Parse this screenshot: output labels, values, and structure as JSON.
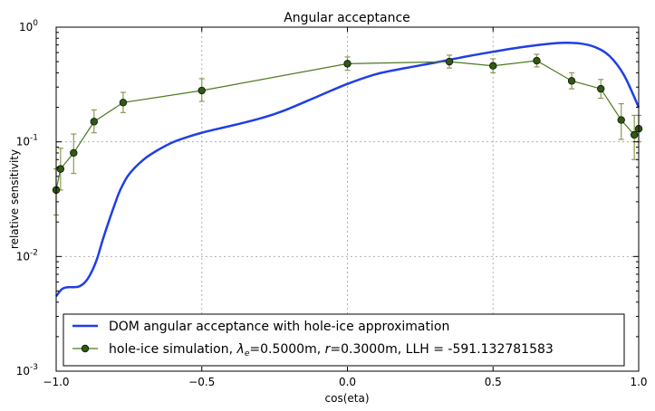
{
  "chart_data": {
    "type": "line",
    "title": "Angular acceptance",
    "xlabel": "cos(eta)",
    "ylabel": "relative sensitivity",
    "xlim": [
      -1.0,
      1.0
    ],
    "ylim": [
      0.001,
      1.0
    ],
    "yscale": "log",
    "grid": true,
    "legend_position": "lower-left",
    "x_ticks": [
      "−1.0",
      "−0.5",
      "0.0",
      "0.5",
      "1.0"
    ],
    "x_tick_values": [
      -1.0,
      -0.5,
      0.0,
      0.5,
      1.0
    ],
    "y_ticks": [
      {
        "base": "10",
        "exp": "0",
        "value": 1.0
      },
      {
        "base": "10",
        "exp": "-1",
        "value": 0.1
      },
      {
        "base": "10",
        "exp": "-2",
        "value": 0.01
      },
      {
        "base": "10",
        "exp": "-3",
        "value": 0.001
      }
    ],
    "series": [
      {
        "name": "DOM angular acceptance with hole-ice approximation",
        "color": "#1f3fe6",
        "style": "line",
        "x": [
          -1.0,
          -0.98,
          -0.96,
          -0.94,
          -0.92,
          -0.9,
          -0.88,
          -0.86,
          -0.84,
          -0.82,
          -0.8,
          -0.78,
          -0.75,
          -0.7,
          -0.65,
          -0.6,
          -0.55,
          -0.5,
          -0.45,
          -0.4,
          -0.35,
          -0.3,
          -0.25,
          -0.2,
          -0.1,
          0.0,
          0.1,
          0.2,
          0.3,
          0.4,
          0.5,
          0.6,
          0.7,
          0.75,
          0.8,
          0.85,
          0.9,
          0.95,
          1.0
        ],
        "y": [
          0.0045,
          0.0052,
          0.0054,
          0.0054,
          0.0055,
          0.006,
          0.0072,
          0.0095,
          0.014,
          0.02,
          0.028,
          0.038,
          0.052,
          0.07,
          0.085,
          0.099,
          0.11,
          0.12,
          0.129,
          0.138,
          0.148,
          0.16,
          0.175,
          0.195,
          0.25,
          0.32,
          0.39,
          0.44,
          0.49,
          0.55,
          0.61,
          0.67,
          0.72,
          0.73,
          0.72,
          0.67,
          0.56,
          0.38,
          0.2
        ]
      },
      {
        "name": "hole-ice simulation, λ_e=0.5000m, r=0.3000m, LLH = -591.132781583",
        "color": "#4b7a1c",
        "marker_color": "#2f5a10",
        "style": "line-marker-errorbar",
        "x": [
          -1.0,
          -0.985,
          -0.94,
          -0.87,
          -0.77,
          -0.5,
          0.0,
          0.35,
          0.5,
          0.65,
          0.77,
          0.87,
          0.94,
          0.985,
          1.0
        ],
        "y": [
          0.038,
          0.058,
          0.08,
          0.15,
          0.22,
          0.28,
          0.48,
          0.5,
          0.46,
          0.51,
          0.34,
          0.29,
          0.155,
          0.115,
          0.13
        ],
        "err_low": [
          0.015,
          0.02,
          0.027,
          0.03,
          0.04,
          0.055,
          0.06,
          0.06,
          0.06,
          0.06,
          0.05,
          0.05,
          0.05,
          0.045,
          0.03
        ],
        "err_high": [
          0.02,
          0.03,
          0.037,
          0.04,
          0.05,
          0.075,
          0.07,
          0.07,
          0.07,
          0.07,
          0.06,
          0.06,
          0.06,
          0.055,
          0.04
        ]
      }
    ],
    "legend": {
      "line_label": "DOM angular acceptance with hole-ice approximation",
      "sim_prefix": "hole-ice simulation, ",
      "lambda_symbol": "λ",
      "lambda_sub": "e",
      "lambda_value": "=0.5000m, ",
      "r_symbol": "r",
      "r_value": "=0.3000m, LLH = -591.132781583"
    }
  }
}
